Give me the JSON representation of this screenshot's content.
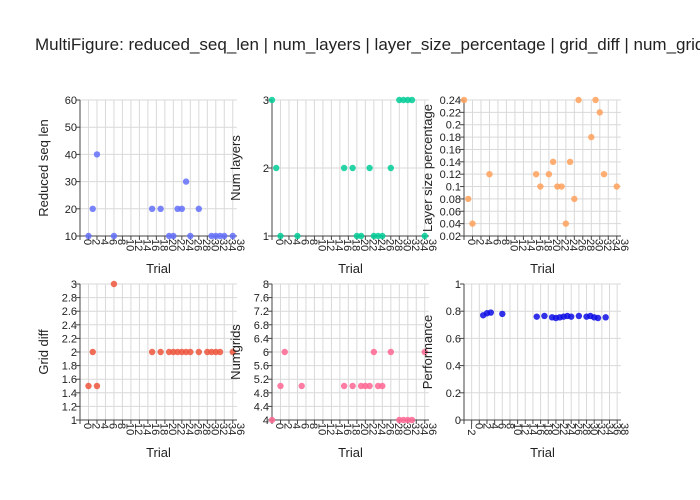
{
  "title": "MultiFigure: reduced_seq_len | num_layers | layer_size_percentage | grid_diff | num_grids",
  "chart_data": [
    {
      "type": "scatter",
      "xlabel": "Trial",
      "ylabel": "Reduced seq len",
      "color": "#636efa",
      "xlim": [
        0,
        37
      ],
      "xticks": [
        0,
        2,
        4,
        6,
        8,
        10,
        12,
        14,
        16,
        18,
        20,
        22,
        24,
        26,
        28,
        30,
        32,
        34,
        36
      ],
      "ylim": [
        10,
        60
      ],
      "yticks": [
        10,
        20,
        30,
        40,
        50,
        60
      ],
      "x": [
        2,
        3,
        4,
        8,
        17,
        19,
        21,
        22,
        23,
        24,
        25,
        26,
        28,
        31,
        32,
        33,
        34,
        36
      ],
      "y": [
        10,
        20,
        40,
        10,
        20,
        20,
        10,
        10,
        20,
        20,
        30,
        10,
        20,
        10,
        10,
        10,
        10,
        10
      ]
    },
    {
      "type": "scatter",
      "xlabel": "Trial",
      "ylabel": "Num layers",
      "color": "#00cc96",
      "xlim": [
        0,
        37
      ],
      "xticks": [
        0,
        2,
        4,
        6,
        8,
        10,
        12,
        14,
        16,
        18,
        20,
        22,
        24,
        26,
        28,
        30,
        32,
        34,
        36
      ],
      "ylim": [
        1,
        3
      ],
      "yticks": [
        1,
        2,
        3
      ],
      "x": [
        0,
        1,
        2,
        6,
        17,
        19,
        20,
        21,
        23,
        24,
        25,
        26,
        28,
        30,
        31,
        32,
        33,
        36
      ],
      "y": [
        3,
        2,
        1,
        1,
        2,
        2,
        1,
        1,
        2,
        1,
        1,
        1,
        2,
        3,
        3,
        3,
        3,
        1
      ]
    },
    {
      "type": "scatter",
      "xlabel": "Trial",
      "ylabel": "Layer size percentage",
      "color": "#ffa15a",
      "xlim": [
        0,
        37
      ],
      "xticks": [
        0,
        2,
        4,
        6,
        8,
        10,
        12,
        14,
        16,
        18,
        20,
        22,
        24,
        26,
        28,
        30,
        32,
        34,
        36
      ],
      "ylim": [
        0.02,
        0.24
      ],
      "yticks": [
        0.02,
        0.04,
        0.06,
        0.08,
        0.1,
        0.12,
        0.14,
        0.16,
        0.18,
        0.2,
        0.22,
        0.24
      ],
      "x": [
        0,
        1,
        2,
        6,
        17,
        18,
        20,
        21,
        22,
        23,
        24,
        25,
        26,
        27,
        30,
        31,
        32,
        33,
        36
      ],
      "y": [
        0.24,
        0.08,
        0.04,
        0.12,
        0.12,
        0.1,
        0.12,
        0.14,
        0.1,
        0.1,
        0.04,
        0.14,
        0.08,
        0.24,
        0.18,
        0.24,
        0.22,
        0.12,
        0.1
      ]
    },
    {
      "type": "scatter",
      "xlabel": "Trial",
      "ylabel": "Grid diff",
      "color": "#ef553b",
      "xlim": [
        0,
        37
      ],
      "xticks": [
        0,
        2,
        4,
        6,
        8,
        10,
        12,
        14,
        16,
        18,
        20,
        22,
        24,
        26,
        28,
        30,
        32,
        34,
        36
      ],
      "ylim": [
        1,
        3
      ],
      "yticks": [
        1,
        1.2,
        1.4,
        1.6,
        1.8,
        2,
        2.2,
        2.4,
        2.6,
        2.8,
        3
      ],
      "x": [
        2,
        3,
        4,
        8,
        17,
        19,
        21,
        22,
        23,
        24,
        25,
        26,
        28,
        30,
        31,
        32,
        33,
        36
      ],
      "y": [
        1.5,
        2,
        1.5,
        3,
        2,
        2,
        2,
        2,
        2,
        2,
        2,
        2,
        2,
        2,
        2,
        2,
        2,
        2
      ]
    },
    {
      "type": "scatter",
      "xlabel": "Trial",
      "ylabel": "Numgrids",
      "color": "#ff6692",
      "xlim": [
        0,
        37
      ],
      "xticks": [
        0,
        2,
        4,
        6,
        8,
        10,
        12,
        14,
        16,
        18,
        20,
        22,
        24,
        26,
        28,
        30,
        32,
        34,
        36
      ],
      "ylim": [
        4,
        8
      ],
      "yticks": [
        4,
        4.4,
        4.8,
        5.2,
        5.6,
        6,
        6.4,
        6.8,
        7.2,
        7.6,
        8
      ],
      "x": [
        0,
        2,
        3,
        7,
        17,
        19,
        21,
        22,
        23,
        24,
        25,
        26,
        28,
        30,
        31,
        32,
        33,
        36
      ],
      "y": [
        4,
        5,
        6,
        5,
        5,
        5,
        5,
        5,
        5,
        6,
        5,
        5,
        6,
        4,
        4,
        4,
        4,
        6
      ]
    },
    {
      "type": "scatter",
      "xlabel": "Trial",
      "ylabel": "Performance",
      "color": "#0d0de6",
      "xlim": [
        -2,
        39
      ],
      "xticks": [
        -2,
        0,
        2,
        4,
        6,
        8,
        10,
        12,
        14,
        16,
        18,
        20,
        22,
        24,
        26,
        28,
        30,
        32,
        34,
        36,
        38
      ],
      "ylim": [
        0,
        1
      ],
      "yticks": [
        0,
        0.2,
        0.4,
        0.6,
        0.8,
        1
      ],
      "x": [
        3,
        4,
        5,
        8,
        17,
        19,
        21,
        22,
        23,
        24,
        25,
        26,
        28,
        30,
        31,
        32,
        33,
        35
      ],
      "y": [
        0.77,
        0.785,
        0.79,
        0.78,
        0.76,
        0.765,
        0.755,
        0.75,
        0.755,
        0.76,
        0.765,
        0.76,
        0.765,
        0.76,
        0.765,
        0.755,
        0.75,
        0.755
      ]
    }
  ]
}
